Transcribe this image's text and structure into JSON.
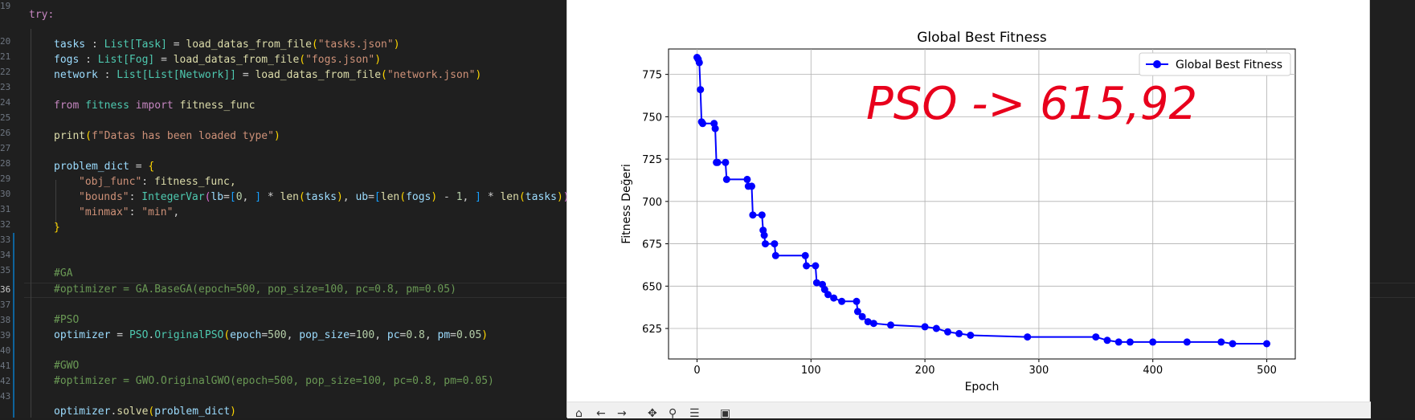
{
  "editor": {
    "line_numbers": [
      "19",
      "20",
      "21",
      "22",
      "23",
      "24",
      "25",
      "26",
      "27",
      "28",
      "29",
      "30",
      "31",
      "32",
      "33",
      "34",
      "35",
      "36",
      "37",
      "38",
      "39",
      "40",
      "41",
      "42",
      "43"
    ],
    "active_line": "36"
  },
  "code": {
    "try_kw": "try:",
    "tasks_var": "tasks",
    "tasks_type": "List[Task]",
    "tasks_call": "load_datas_from_file",
    "tasks_arg": "\"tasks.json\"",
    "fogs_var": "fogs",
    "fogs_type": "List[Fog]",
    "fogs_arg": "\"fogs.json\"",
    "network_var": "network",
    "network_type": "List[List[Network]]",
    "network_arg": "\"network.json\"",
    "from_kw": "from",
    "module": "fitness",
    "import_kw": "import",
    "imported": "fitness_func",
    "print_fn": "print",
    "print_str": "f\"Datas has been loaded type\"",
    "problem_dict_var": "problem_dict",
    "obj_func_key": "\"obj_func\"",
    "obj_func_val": "fitness_func,",
    "bounds_key": "\"bounds\"",
    "bounds_type": "IntegerVar",
    "minmax_key": "\"minmax\"",
    "minmax_val": "\"min\"",
    "ga_comment": "#GA",
    "ga_line": "#optimizer = GA.BaseGA(epoch=500, pop_size=100, pc=0.8, pm=0.05)",
    "pso_comment": "#PSO",
    "optimizer_var": "optimizer",
    "pso_class": "PSO",
    "pso_method": "OriginalPSO",
    "gwo_comment": "#GWO",
    "gwo_line": "#optimizer = GWO.OriginalGWO(epoch=500, pop_size=100, pc=0.8, pm=0.05)",
    "solve_method": "solve",
    "problem_arg": "problem_dict"
  },
  "chart_data": {
    "type": "line",
    "title": "Global Best Fitness",
    "xlabel": "Epoch",
    "ylabel": "Fitness Değeri",
    "xlim": [
      -25,
      525
    ],
    "ylim": [
      607,
      790
    ],
    "xticks": [
      0,
      100,
      200,
      300,
      400,
      500
    ],
    "yticks": [
      625,
      650,
      675,
      700,
      725,
      750,
      775
    ],
    "grid": true,
    "legend_position": "top-right",
    "line_color": "#0000ff",
    "annotation": "PSO -> 615,92",
    "annotation_color": "#e8001c",
    "series": [
      {
        "name": "Global Best Fitness",
        "x": [
          0,
          1,
          2,
          3,
          4,
          5,
          15,
          16,
          17,
          18,
          25,
          26,
          44,
          45,
          48,
          49,
          57,
          58,
          59,
          60,
          68,
          69,
          95,
          96,
          104,
          105,
          110,
          112,
          115,
          120,
          127,
          140,
          141,
          145,
          150,
          155,
          170,
          200,
          210,
          220,
          230,
          240,
          290,
          350,
          360,
          370,
          380,
          400,
          430,
          460,
          470,
          500
        ],
        "y": [
          785,
          784,
          782,
          766,
          747,
          746,
          746,
          743,
          723,
          723,
          723,
          713,
          713,
          709,
          709,
          692,
          692,
          683,
          680,
          675,
          675,
          668,
          668,
          662,
          662,
          652,
          651,
          648,
          645,
          643,
          641,
          641,
          635,
          632,
          629,
          628,
          627,
          626,
          625,
          623,
          622,
          621,
          620,
          620,
          618,
          617,
          617,
          617,
          617,
          617,
          616,
          616
        ]
      }
    ]
  },
  "icons": [
    "home-icon",
    "back-icon",
    "forward-icon",
    "pan-icon",
    "zoom-icon",
    "configure-icon",
    "save-icon"
  ]
}
